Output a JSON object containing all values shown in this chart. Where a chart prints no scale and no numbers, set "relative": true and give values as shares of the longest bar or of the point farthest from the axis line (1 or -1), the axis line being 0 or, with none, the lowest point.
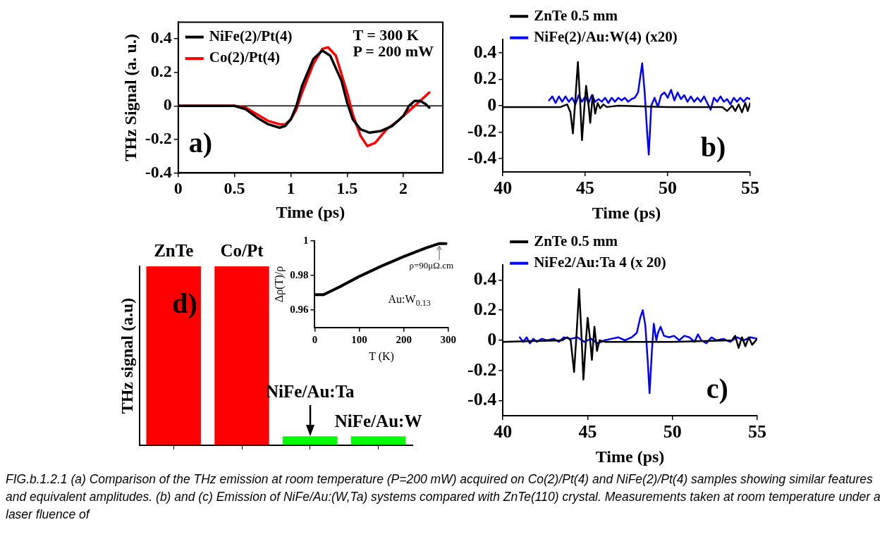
{
  "chart_data": [
    {
      "type": "line",
      "ylabel": "THz Signal (a. u.)",
      "xlabel": "Time (ps)",
      "xlim": [
        0,
        2.35
      ],
      "xticks": [
        0,
        0.5,
        1,
        1.5,
        2
      ],
      "ylim": [
        -0.4,
        0.5
      ],
      "yticks": [
        -0.4,
        -0.2,
        0,
        0.2,
        0.4
      ],
      "legend": "top left",
      "grid": false,
      "marker": "none",
      "line_style": "solid",
      "ref_lines": [
        {
          "axis": "y",
          "value": 0,
          "color": "#000000"
        }
      ],
      "annotations": [
        "a)",
        "T = 300 K",
        "P = 200 mW"
      ],
      "series": [
        {
          "name": "NiFe(2)/Pt(4)",
          "color": "#000000",
          "x": [
            0,
            0.5,
            0.6,
            0.7,
            0.8,
            0.9,
            0.95,
            1.0,
            1.05,
            1.1,
            1.2,
            1.28,
            1.35,
            1.45,
            1.5,
            1.55,
            1.62,
            1.7,
            1.8,
            1.9,
            2.0,
            2.05,
            2.1,
            2.15,
            2.2,
            2.23
          ],
          "values": [
            0,
            0,
            -0.02,
            -0.07,
            -0.11,
            -0.13,
            -0.12,
            -0.08,
            0.0,
            0.12,
            0.28,
            0.33,
            0.3,
            0.15,
            0.02,
            -0.08,
            -0.14,
            -0.16,
            -0.15,
            -0.12,
            -0.06,
            0.0,
            0.03,
            0.03,
            0.01,
            -0.01
          ]
        },
        {
          "name": "Co(2)/Pt(4)",
          "color": "#ff0000",
          "x": [
            0,
            0.5,
            0.6,
            0.7,
            0.8,
            0.9,
            0.95,
            1.0,
            1.05,
            1.1,
            1.2,
            1.28,
            1.33,
            1.4,
            1.5,
            1.55,
            1.62,
            1.68,
            1.75,
            1.85,
            1.95,
            2.05,
            2.15,
            2.23
          ],
          "values": [
            0,
            0,
            -0.01,
            -0.05,
            -0.09,
            -0.11,
            -0.11,
            -0.08,
            -0.02,
            0.08,
            0.25,
            0.34,
            0.35,
            0.3,
            0.08,
            -0.05,
            -0.18,
            -0.24,
            -0.22,
            -0.14,
            -0.09,
            -0.03,
            0.03,
            0.08
          ]
        }
      ]
    },
    {
      "type": "line",
      "xlabel": "Time (ps)",
      "xlim": [
        40,
        55
      ],
      "xticks": [
        40,
        45,
        50,
        55
      ],
      "ylim": [
        -0.5,
        0.5
      ],
      "yticks": [
        -0.4,
        -0.2,
        0,
        0.2,
        0.4
      ],
      "legend": "top left",
      "grid": false,
      "marker": "none",
      "line_style": "solid",
      "annotations": [
        "b)"
      ],
      "series": [
        {
          "name": "ZnTe 0.5 mm",
          "color": "#000000",
          "x": [
            40,
            43.5,
            43.9,
            44.1,
            44.25,
            44.4,
            44.55,
            44.7,
            44.8,
            44.95,
            45.05,
            45.2,
            45.3,
            45.45,
            45.6,
            45.75,
            45.9,
            46.1,
            46.3,
            47,
            50,
            53,
            53.3,
            53.6,
            53.9,
            54.1,
            54.3,
            54.5,
            54.7,
            54.85,
            55
          ],
          "values": [
            -0.01,
            -0.01,
            0.01,
            -0.05,
            -0.21,
            0.05,
            0.33,
            0.0,
            -0.26,
            0.0,
            0.15,
            0.0,
            -0.13,
            0.08,
            -0.06,
            0.02,
            -0.02,
            0.01,
            -0.01,
            0.0,
            -0.01,
            -0.01,
            -0.01,
            -0.04,
            0.0,
            -0.04,
            0.01,
            -0.05,
            0.02,
            -0.04,
            0.02
          ]
        },
        {
          "name": "NiFe(2)/Au:W(4) (x20)",
          "color": "#0000ff",
          "x": [
            42.8,
            43.0,
            43.2,
            43.4,
            43.6,
            43.8,
            44.0,
            44.2,
            44.4,
            44.6,
            44.8,
            45.0,
            45.2,
            45.4,
            45.6,
            45.8,
            46.0,
            46.2,
            46.4,
            46.6,
            46.8,
            47.0,
            47.2,
            47.4,
            47.6,
            47.8,
            48.0,
            48.2,
            48.45,
            48.6,
            48.75,
            48.85,
            49.0,
            49.2,
            49.4,
            49.6,
            49.8,
            50.0,
            50.2,
            50.4,
            50.6,
            50.8,
            51.0,
            51.2,
            51.4,
            51.6,
            51.8,
            52.0,
            52.2,
            52.4,
            52.6,
            52.8,
            53.0,
            53.2,
            53.4,
            53.6,
            53.8,
            54.0,
            54.2,
            54.4,
            54.6,
            54.8,
            55.0
          ],
          "values": [
            0.04,
            0.07,
            0.02,
            0.07,
            0.03,
            0.07,
            0.03,
            0.06,
            0.01,
            0.08,
            0.03,
            0.07,
            0.02,
            0.08,
            0.03,
            0.05,
            0.03,
            0.06,
            0.02,
            0.06,
            0.03,
            0.06,
            0.04,
            0.06,
            0.03,
            0.05,
            0.06,
            0.1,
            0.32,
            0.1,
            -0.2,
            -0.37,
            0.0,
            0.06,
            -0.01,
            0.08,
            0.1,
            0.06,
            0.12,
            0.04,
            0.1,
            0.05,
            0.08,
            0.03,
            0.07,
            0.03,
            0.06,
            0.03,
            0.07,
            0.02,
            -0.03,
            0.06,
            0.03,
            0.07,
            0.03,
            0.05,
            0.01,
            0.06,
            0.03,
            0.06,
            0.03,
            0.06,
            0.05
          ]
        }
      ]
    },
    {
      "type": "bar",
      "relative": true,
      "ylabel": "THz signal (a.u)",
      "categories": [
        "ZnTe",
        "Co/Pt",
        "NiFe/Au:Ta",
        "NiFe/Au:W"
      ],
      "values": [
        1,
        1,
        0.05,
        0.05
      ],
      "colors": [
        "#ff0000",
        "#ff0000",
        "#00ff00",
        "#00ff00"
      ],
      "grid": false,
      "annotations": [
        "d)"
      ]
    },
    {
      "type": "line",
      "xlabel": "T (K)",
      "ylabel": "Δρ(T)/ρ",
      "xlim": [
        0,
        300
      ],
      "xticks": [
        0,
        100,
        200,
        300
      ],
      "ylim": [
        0.95,
        1
      ],
      "yticks": [
        0.96,
        0.98,
        1
      ],
      "grid": false,
      "marker": "none",
      "line_style": "solid",
      "annotations": [
        {
          "text": "ρ=90μΩ.cm",
          "x": 280,
          "y": 0.9985
        },
        "Au:W$_{0.13}$"
      ],
      "series": [
        {
          "color": "#000000",
          "x": [
            0,
            20,
            40,
            60,
            100,
            150,
            200,
            250,
            280,
            295
          ],
          "values": [
            0.969,
            0.969,
            0.9715,
            0.974,
            0.9795,
            0.9855,
            0.991,
            0.996,
            0.9985,
            0.9985
          ]
        }
      ]
    },
    {
      "type": "line",
      "xlabel": "Time (ps)",
      "xlim": [
        40,
        55
      ],
      "xticks": [
        40,
        45,
        50,
        55
      ],
      "ylim": [
        -0.5,
        0.5
      ],
      "yticks": [
        -0.4,
        -0.2,
        0,
        0.2,
        0.4
      ],
      "legend": "top left",
      "grid": false,
      "marker": "none",
      "line_style": "solid",
      "annotations": [
        "c)"
      ],
      "series": [
        {
          "name": "ZnTe 0.5 mm",
          "color": "#000000",
          "x": [
            40,
            43.5,
            43.8,
            44.0,
            44.2,
            44.35,
            44.5,
            44.65,
            44.75,
            44.9,
            45.0,
            45.15,
            45.25,
            45.4,
            45.55,
            45.7,
            46,
            50,
            53.5,
            53.7,
            53.9,
            54.1,
            54.3,
            54.5,
            54.7,
            55
          ],
          "values": [
            -0.01,
            0.0,
            0.02,
            0.0,
            -0.21,
            0.05,
            0.34,
            0.0,
            -0.26,
            0.0,
            0.15,
            0.0,
            -0.13,
            0.09,
            -0.07,
            0.0,
            -0.01,
            -0.01,
            0.0,
            0.03,
            -0.05,
            0.02,
            -0.04,
            0.02,
            -0.03,
            0.01
          ]
        },
        {
          "name": "NiFe2/Au:Ta 4 (x 20)",
          "color": "#0000ff",
          "x": [
            41,
            41.2,
            41.4,
            41.6,
            41.8,
            42,
            42.3,
            42.6,
            43,
            43.3,
            43.6,
            44,
            44.4,
            44.8,
            45.2,
            45.6,
            46,
            46.4,
            46.8,
            47.2,
            47.6,
            47.9,
            48.1,
            48.25,
            48.4,
            48.55,
            48.65,
            48.8,
            48.9,
            49.05,
            49.15,
            49.3,
            49.5,
            49.8,
            50.1,
            50.4,
            50.7,
            51,
            51.3,
            51.5,
            51.7,
            52,
            52.3,
            52.6,
            53,
            53.4,
            53.8,
            54.2,
            54.6,
            55
          ],
          "values": [
            0.02,
            -0.01,
            0.02,
            -0.02,
            0.01,
            -0.01,
            0.01,
            0.0,
            0.01,
            -0.01,
            0.02,
            0.01,
            0.02,
            -0.01,
            0.01,
            -0.02,
            0.0,
            0.01,
            0.02,
            0.0,
            0.02,
            0.05,
            0.15,
            0.2,
            0.1,
            -0.15,
            -0.35,
            -0.05,
            0.11,
            0.0,
            0.05,
            0.09,
            0.03,
            0.02,
            0.03,
            0.0,
            0.03,
            0.02,
            -0.01,
            0.04,
            0.0,
            -0.02,
            0.02,
            0.0,
            0.01,
            -0.01,
            0.02,
            0.0,
            0.02,
            0.01
          ]
        }
      ]
    },
    {
      "type": "other",
      "annotations": [
        "FIG.b.1.2.1 (a) Comparison of the THz emission at room temperature (P=200 mW) acquired on Co(2)/Pt(4) and NiFe(2)/Pt(4) samples showing similar features and equivalent amplitudes. (b) and (c) Emission of NiFe/Au:(W,Ta) systems compared with ZnTe(110) crystal. Measurements taken at room temperature under a laser fluence of"
      ]
    }
  ]
}
